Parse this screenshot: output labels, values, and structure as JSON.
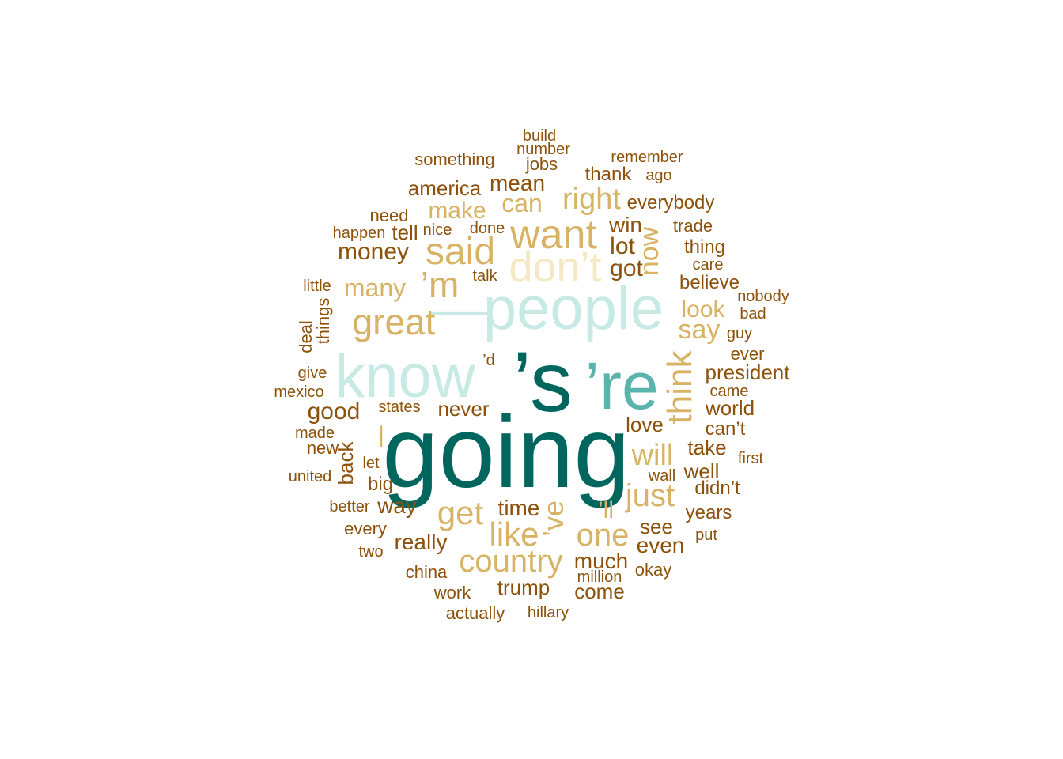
{
  "palette": {
    "c1": "#01665e",
    "c2": "#5ab4ac",
    "c3": "#c7eae5",
    "c4": "#f6e8c3",
    "c5": "#d8b365",
    "c6": "#8c510a"
  },
  "words": [
    {
      "text": "going",
      "color": "c1"
    },
    {
      "text": "’s",
      "color": "c1"
    },
    {
      "text": "’re",
      "color": "c2"
    },
    {
      "text": "people",
      "color": "c3"
    },
    {
      "text": "know",
      "color": "c3"
    },
    {
      "text": "—",
      "color": "c3"
    },
    {
      "text": "don’t",
      "color": "c4"
    },
    {
      "text": "want",
      "color": "c5"
    },
    {
      "text": "said",
      "color": "c5"
    },
    {
      "text": "great",
      "color": "c5"
    },
    {
      "text": "’m",
      "color": "c5"
    },
    {
      "text": "think",
      "color": "c5"
    },
    {
      "text": "get",
      "color": "c5"
    },
    {
      "text": "like",
      "color": "c5"
    },
    {
      "text": "one",
      "color": "c5"
    },
    {
      "text": "country",
      "color": "c5"
    },
    {
      "text": "just",
      "color": "c5"
    },
    {
      "text": "will",
      "color": "c5"
    },
    {
      "text": "right",
      "color": "c5"
    },
    {
      "text": "’ve",
      "color": "c5"
    },
    {
      "text": "say",
      "color": "c5"
    },
    {
      "text": "now",
      "color": "c5"
    },
    {
      "text": "many",
      "color": "c5"
    },
    {
      "text": "can",
      "color": "c5"
    },
    {
      "text": "make",
      "color": "c5"
    },
    {
      "text": "look",
      "color": "c5"
    },
    {
      "text": "|",
      "color": "c5"
    },
    {
      "text": "’ll",
      "color": "c5"
    },
    {
      "text": "money",
      "color": "c6"
    },
    {
      "text": "mean",
      "color": "c6"
    },
    {
      "text": "america",
      "color": "c6"
    },
    {
      "text": "got",
      "color": "c6"
    },
    {
      "text": "lot",
      "color": "c6"
    },
    {
      "text": "win",
      "color": "c6"
    },
    {
      "text": "good",
      "color": "c6"
    },
    {
      "text": "never",
      "color": "c6"
    },
    {
      "text": "really",
      "color": "c6"
    },
    {
      "text": "way",
      "color": "c6"
    },
    {
      "text": "time",
      "color": "c6"
    },
    {
      "text": "much",
      "color": "c6"
    },
    {
      "text": "trump",
      "color": "c6"
    },
    {
      "text": "come",
      "color": "c6"
    },
    {
      "text": "even",
      "color": "c6"
    },
    {
      "text": "see",
      "color": "c6"
    },
    {
      "text": "love",
      "color": "c6"
    },
    {
      "text": "take",
      "color": "c6"
    },
    {
      "text": "well",
      "color": "c6"
    },
    {
      "text": "president",
      "color": "c6"
    },
    {
      "text": "world",
      "color": "c6"
    },
    {
      "text": "believe",
      "color": "c6"
    },
    {
      "text": "everybody",
      "color": "c6"
    },
    {
      "text": "back",
      "color": "c6"
    },
    {
      "text": "tell",
      "color": "c6"
    },
    {
      "text": "need",
      "color": "c6"
    },
    {
      "text": "something",
      "color": "c6"
    },
    {
      "text": "jobs",
      "color": "c6"
    },
    {
      "text": "thank",
      "color": "c6"
    },
    {
      "text": "thing",
      "color": "c6"
    },
    {
      "text": "years",
      "color": "c6"
    },
    {
      "text": "didn’t",
      "color": "c6"
    },
    {
      "text": "can’t",
      "color": "c6"
    },
    {
      "text": "big",
      "color": "c6"
    },
    {
      "text": "deal",
      "color": "c6"
    },
    {
      "text": "things",
      "color": "c6"
    },
    {
      "text": "ever",
      "color": "c6"
    },
    {
      "text": "trade",
      "color": "c6"
    },
    {
      "text": "happen",
      "color": "c6"
    },
    {
      "text": "states",
      "color": "c6"
    },
    {
      "text": "new",
      "color": "c6"
    },
    {
      "text": "better",
      "color": "c6"
    },
    {
      "text": "every",
      "color": "c6"
    },
    {
      "text": "china",
      "color": "c6"
    },
    {
      "text": "work",
      "color": "c6"
    },
    {
      "text": "actually",
      "color": "c6"
    },
    {
      "text": "hillary",
      "color": "c6"
    },
    {
      "text": "million",
      "color": "c6"
    },
    {
      "text": "okay",
      "color": "c6"
    },
    {
      "text": "put",
      "color": "c6"
    },
    {
      "text": "first",
      "color": "c6"
    },
    {
      "text": "wall",
      "color": "c6"
    },
    {
      "text": "came",
      "color": "c6"
    },
    {
      "text": "guy",
      "color": "c6"
    },
    {
      "text": "bad",
      "color": "c6"
    },
    {
      "text": "nobody",
      "color": "c6"
    },
    {
      "text": "care",
      "color": "c6"
    },
    {
      "text": "remember",
      "color": "c6"
    },
    {
      "text": "ago",
      "color": "c6"
    },
    {
      "text": "build",
      "color": "c6"
    },
    {
      "text": "number",
      "color": "c6"
    },
    {
      "text": "nice",
      "color": "c6"
    },
    {
      "text": "done",
      "color": "c6"
    },
    {
      "text": "talk",
      "color": "c6"
    },
    {
      "text": "little",
      "color": "c6"
    },
    {
      "text": "give",
      "color": "c6"
    },
    {
      "text": "mexico",
      "color": "c6"
    },
    {
      "text": "made",
      "color": "c6"
    },
    {
      "text": "united",
      "color": "c6"
    },
    {
      "text": "let",
      "color": "c6"
    },
    {
      "text": "two",
      "color": "c6"
    },
    {
      "text": "’d",
      "color": "c6"
    }
  ]
}
